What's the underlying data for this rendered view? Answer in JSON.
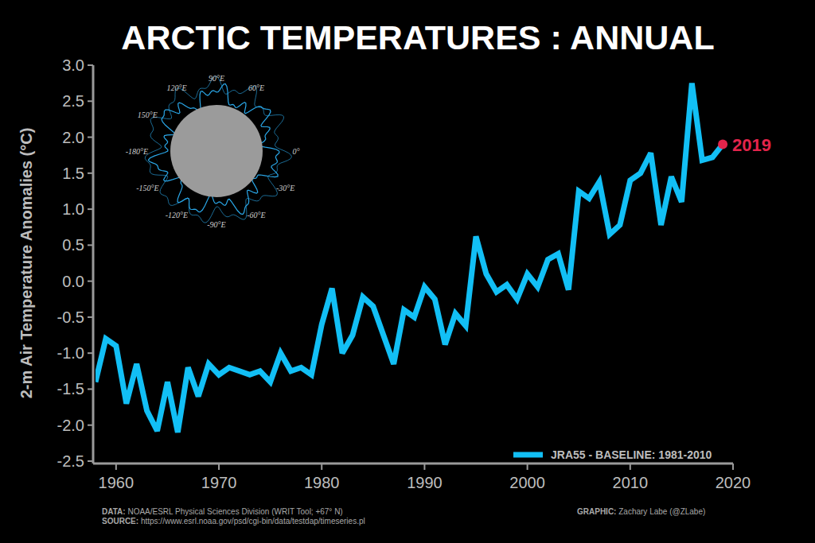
{
  "chart_data": {
    "type": "line",
    "title": "ARCTIC TEMPERATURES : ANNUAL",
    "y_label": "2-m Air Temperature Anomalies (°C)",
    "x": [
      1958,
      1959,
      1960,
      1961,
      1962,
      1963,
      1964,
      1965,
      1966,
      1967,
      1968,
      1969,
      1970,
      1971,
      1972,
      1973,
      1974,
      1975,
      1976,
      1977,
      1978,
      1979,
      1980,
      1981,
      1982,
      1983,
      1984,
      1985,
      1986,
      1987,
      1988,
      1989,
      1990,
      1991,
      1992,
      1993,
      1994,
      1995,
      1996,
      1997,
      1998,
      1999,
      2000,
      2001,
      2002,
      2003,
      2004,
      2005,
      2006,
      2007,
      2008,
      2009,
      2010,
      2011,
      2012,
      2013,
      2014,
      2015,
      2016,
      2017,
      2018,
      2019
    ],
    "series": [
      {
        "name": "JRA55 - BASELINE: 1981-2010",
        "color": "#12bff5",
        "values": [
          -1.4,
          -0.8,
          -0.9,
          -1.7,
          -1.15,
          -1.8,
          -2.08,
          -1.4,
          -2.1,
          -1.2,
          -1.6,
          -1.15,
          -1.3,
          -1.2,
          -1.25,
          -1.3,
          -1.25,
          -1.4,
          -1.0,
          -1.25,
          -1.2,
          -1.3,
          -0.6,
          -0.1,
          -1.0,
          -0.75,
          -0.22,
          -0.35,
          -0.75,
          -1.15,
          -0.4,
          -0.5,
          -0.08,
          -0.25,
          -0.88,
          -0.45,
          -0.62,
          0.62,
          0.1,
          -0.15,
          -0.05,
          -0.25,
          0.1,
          -0.08,
          0.3,
          0.38,
          -0.12,
          1.25,
          1.15,
          1.38,
          0.65,
          0.78,
          1.4,
          1.5,
          1.78,
          0.78,
          1.45,
          1.1,
          2.75,
          1.68,
          1.72,
          1.9
        ]
      }
    ],
    "xlim": [
      1958,
      2020
    ],
    "xticks": [
      1960,
      1970,
      1980,
      1990,
      2000,
      2010,
      2020
    ],
    "ylim": [
      -2.5,
      3.0
    ],
    "yticks": [
      -2.5,
      {
        "value": -2.0,
        "label": "-2.0"
      },
      -1.5,
      {
        "value": -1.0,
        "label": "-1.0"
      },
      -0.5,
      {
        "value": 0.0,
        "label": "0.0"
      },
      0.5,
      {
        "value": 1.0,
        "label": "1.0"
      },
      1.5,
      {
        "value": 2.0,
        "label": "2.0"
      },
      2.5,
      {
        "value": 3.0,
        "label": "3.0"
      }
    ],
    "grid": false,
    "legend": "lower right",
    "annotations": [
      {
        "text": "2019",
        "color": "#e3244b"
      }
    ],
    "inset_labels": [
      "90°E",
      "60°E",
      "0°",
      "-30°E",
      "-60°E",
      "-90°E",
      "-120°E",
      "-150°E",
      "-180°E",
      "150°E",
      "120°E"
    ],
    "notes": [
      {
        "label": "DATA:",
        "text": " NOAA/ESRL Physical Sciences Division (WRIT Tool; +67° N)"
      },
      {
        "label": "SOURCE:",
        "text": " https://www.esrl.noaa.gov/psd/cgi-bin/data/testdap/timeseries.pl"
      },
      {
        "label": "GRAPHIC:",
        "text": " Zachary Labe (@ZLabe)"
      }
    ]
  }
}
